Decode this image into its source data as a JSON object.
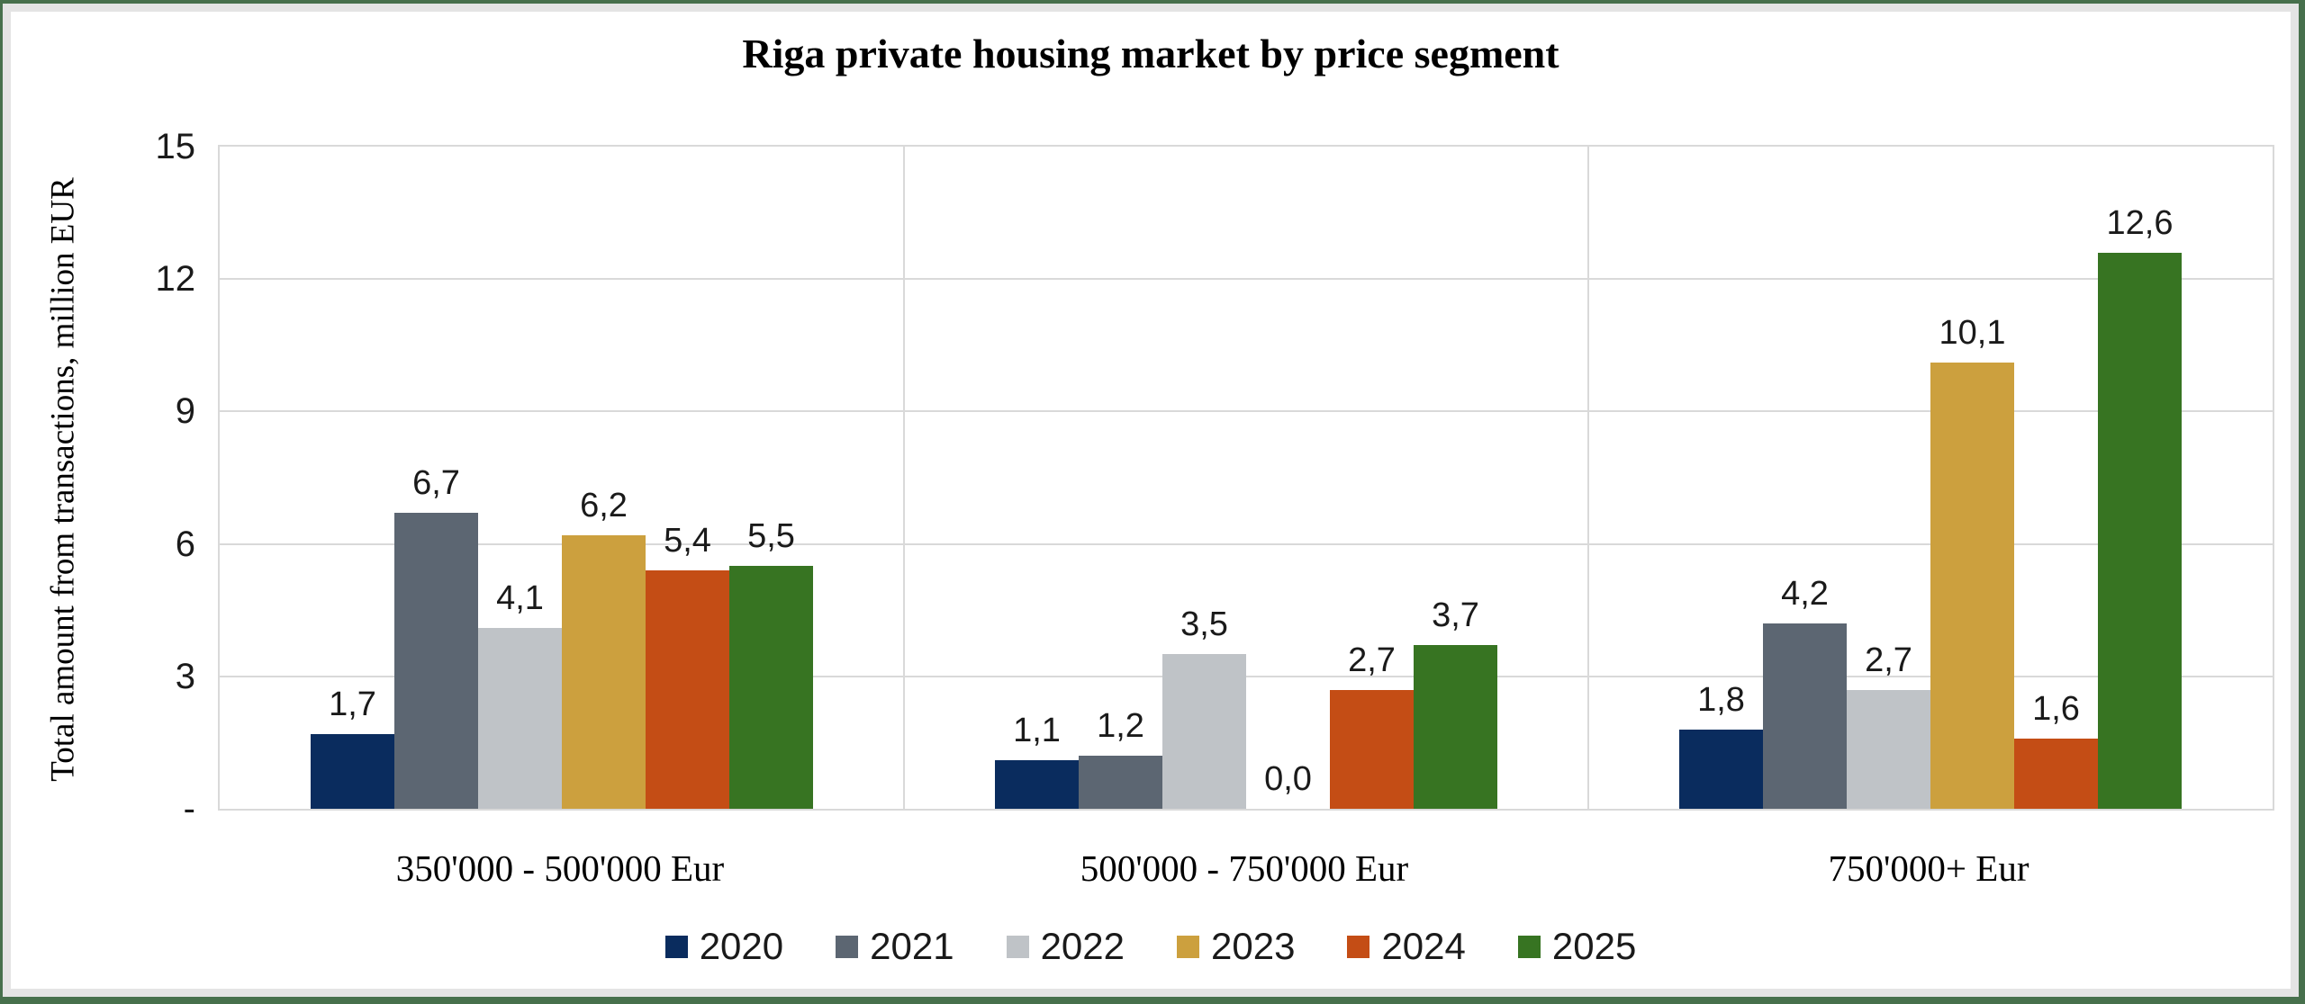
{
  "frame": {
    "border_color": "#47704C",
    "inner_edge_color": "#E4E4E4",
    "background_color": "#FFFFFF"
  },
  "chart_data": {
    "type": "bar",
    "title": "Riga private housing market by price segment",
    "xlabel": "",
    "ylabel": "Total amount from transactions, million EUR",
    "categories": [
      "350'000 - 500'000 Eur",
      "500'000 - 750'000 Eur",
      "750'000+ Eur"
    ],
    "series": [
      {
        "name": "2020",
        "color": "#0A2C5E",
        "values": [
          1.7,
          1.1,
          1.8
        ]
      },
      {
        "name": "2021",
        "color": "#5C6672",
        "values": [
          6.7,
          1.2,
          4.2
        ]
      },
      {
        "name": "2022",
        "color": "#BFC3C7",
        "values": [
          4.1,
          3.5,
          2.7
        ]
      },
      {
        "name": "2023",
        "color": "#CCA03E",
        "values": [
          6.2,
          0.0,
          10.1
        ]
      },
      {
        "name": "2024",
        "color": "#C44D15",
        "values": [
          5.4,
          2.7,
          1.6
        ]
      },
      {
        "name": "2025",
        "color": "#377422",
        "values": [
          5.5,
          3.7,
          12.6
        ]
      }
    ],
    "ylim": [
      0,
      15
    ],
    "yticks": [
      {
        "value": 15,
        "label": "15"
      },
      {
        "value": 12,
        "label": "12"
      },
      {
        "value": 9,
        "label": "9"
      },
      {
        "value": 6,
        "label": "6"
      },
      {
        "value": 3,
        "label": "3"
      },
      {
        "value": 0,
        "label": "-"
      }
    ],
    "grid": true,
    "gridline_color": "#D9D9D9",
    "legend_position": "bottom",
    "decimal_separator": ",",
    "data_label_decimals": 1
  }
}
